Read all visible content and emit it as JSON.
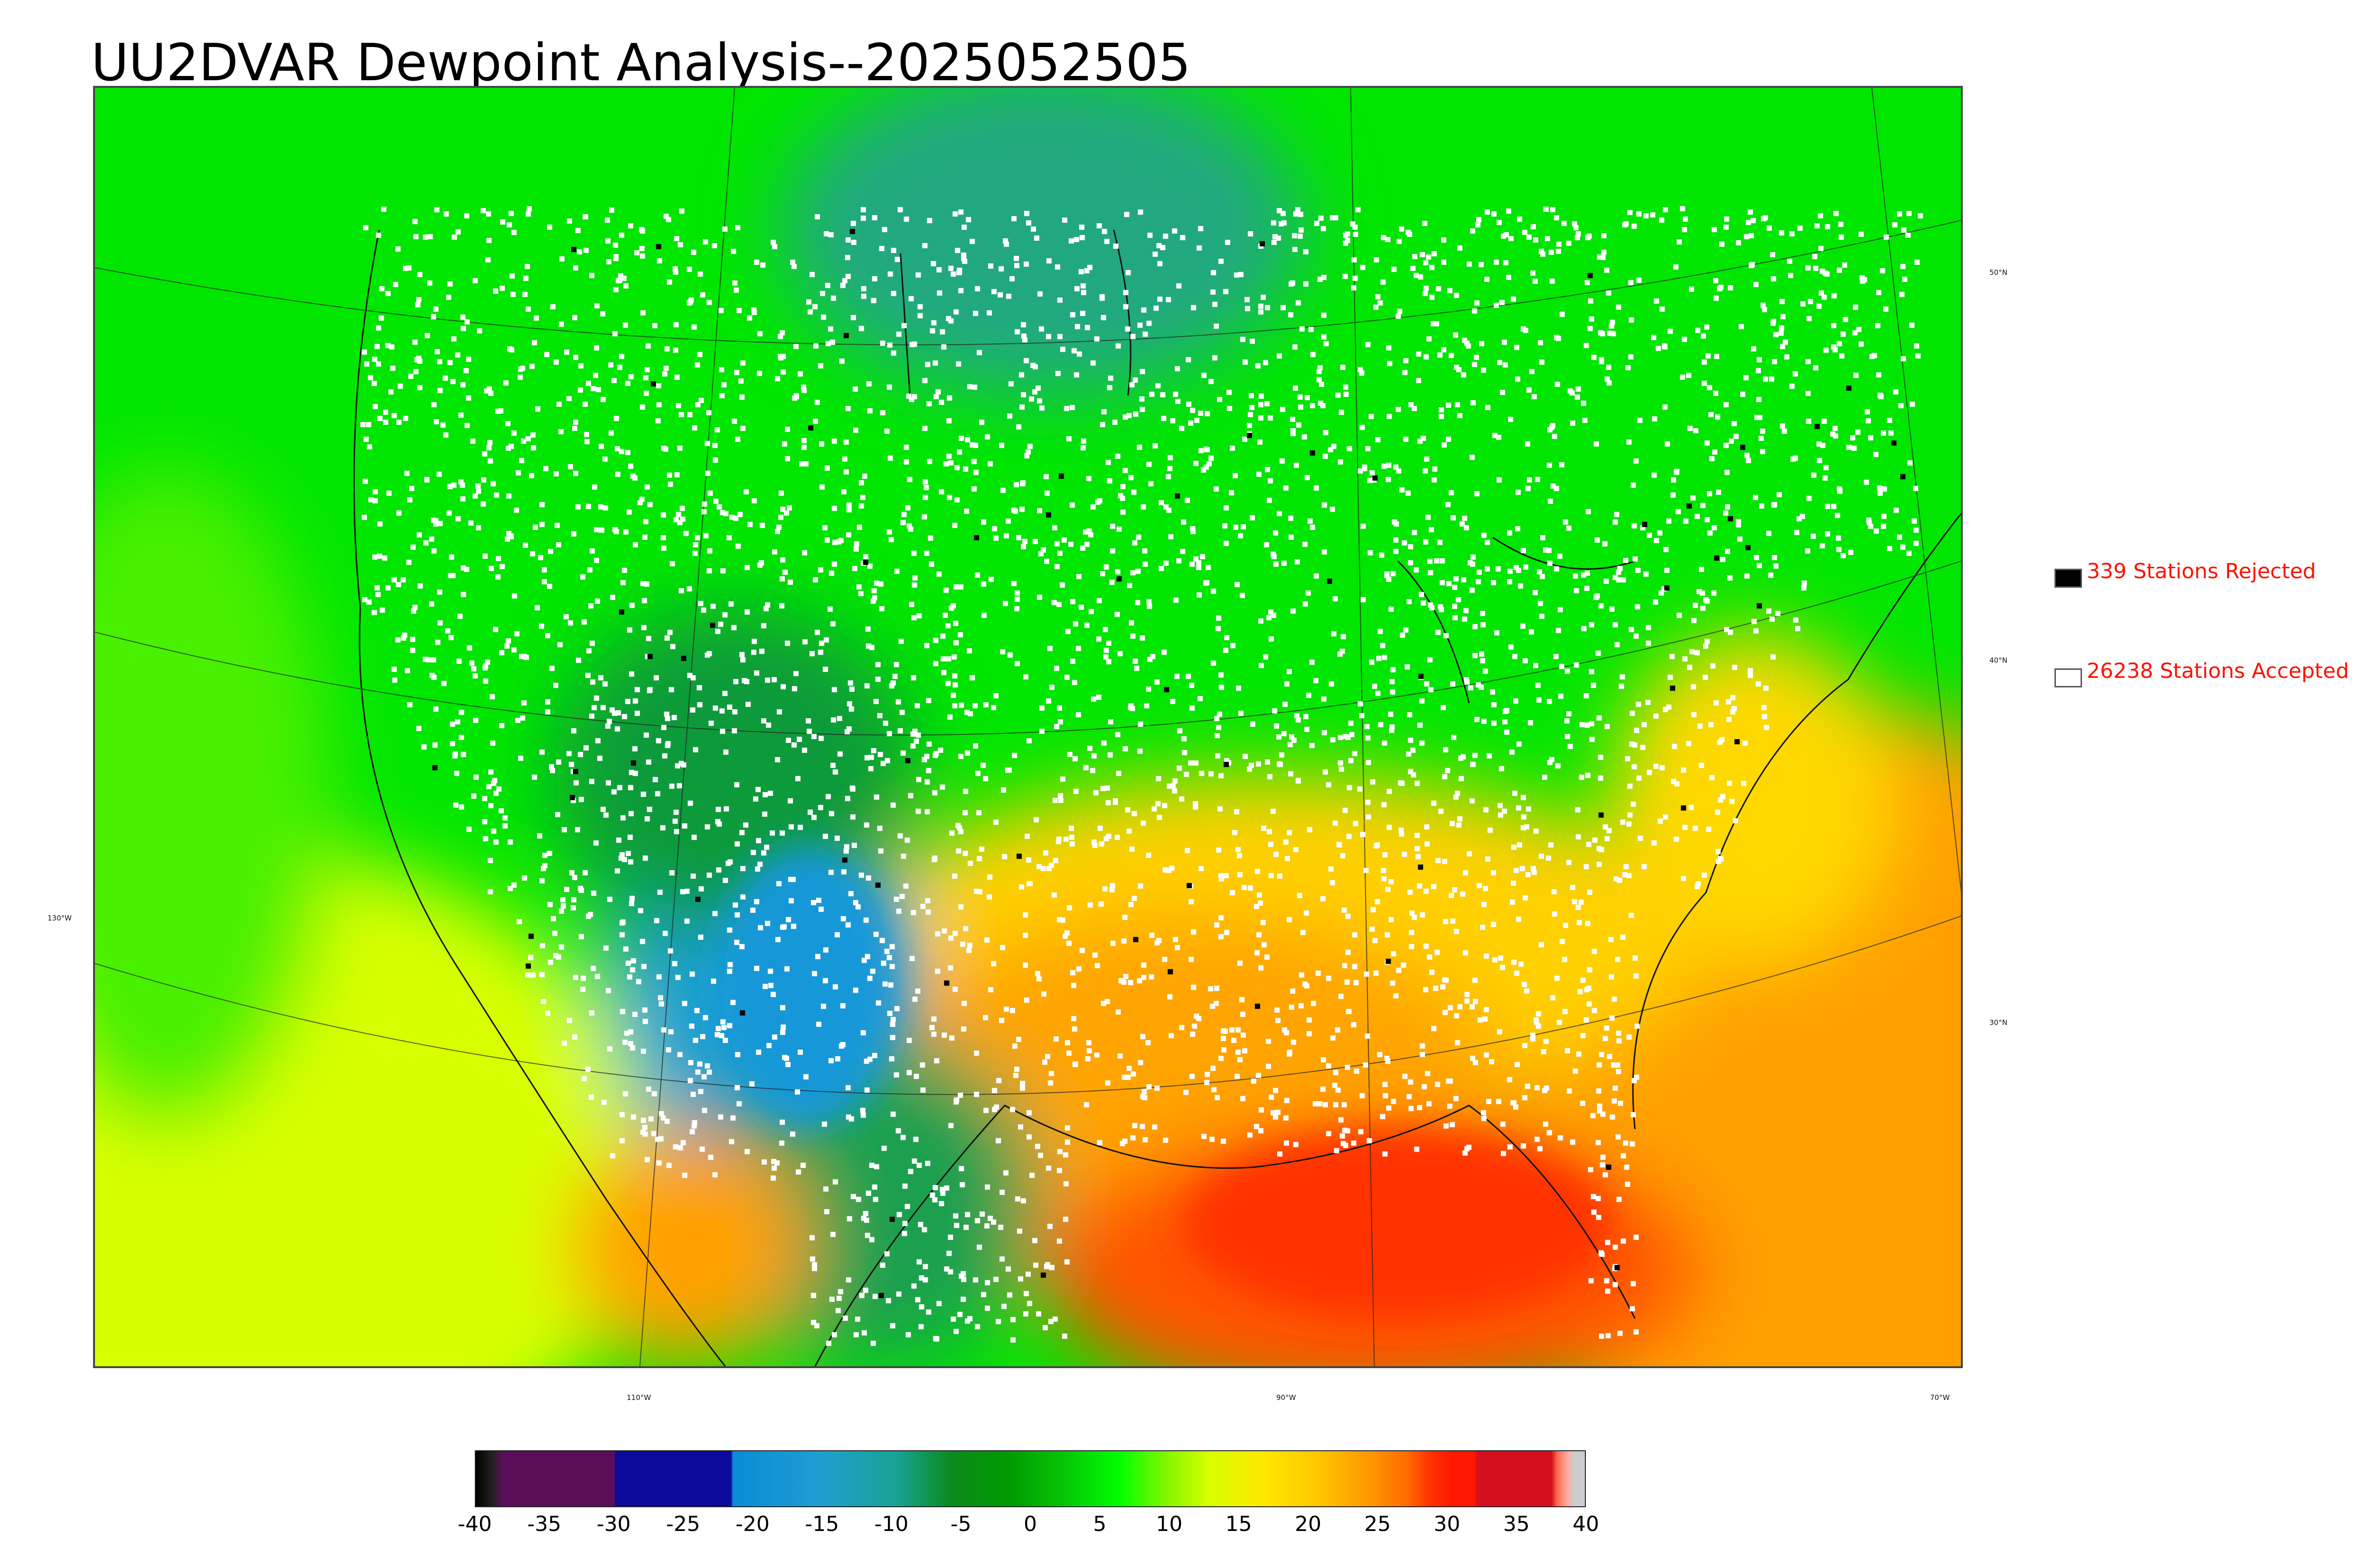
{
  "title": "UU2DVAR Dewpoint Analysis--2025052505",
  "lat_labels": [
    "50°N",
    "40°N",
    "30°N"
  ],
  "lon_labels": [
    "130°W",
    "110°W",
    "90°W",
    "70°W"
  ],
  "legend": {
    "rejected": {
      "text": "339 Stations Rejected",
      "marker_color": "#000000"
    },
    "accepted": {
      "text": "26238 Stations Accepted",
      "marker_color": "#ffffff"
    },
    "text_color": "#ff1100"
  },
  "colorbar": {
    "ticks": [
      "-40",
      "-35",
      "-30",
      "-25",
      "-20",
      "-15",
      "-10",
      "-5",
      "0",
      "5",
      "10",
      "15",
      "20",
      "25",
      "30",
      "35",
      "40"
    ],
    "range": [
      -40,
      40
    ]
  }
}
